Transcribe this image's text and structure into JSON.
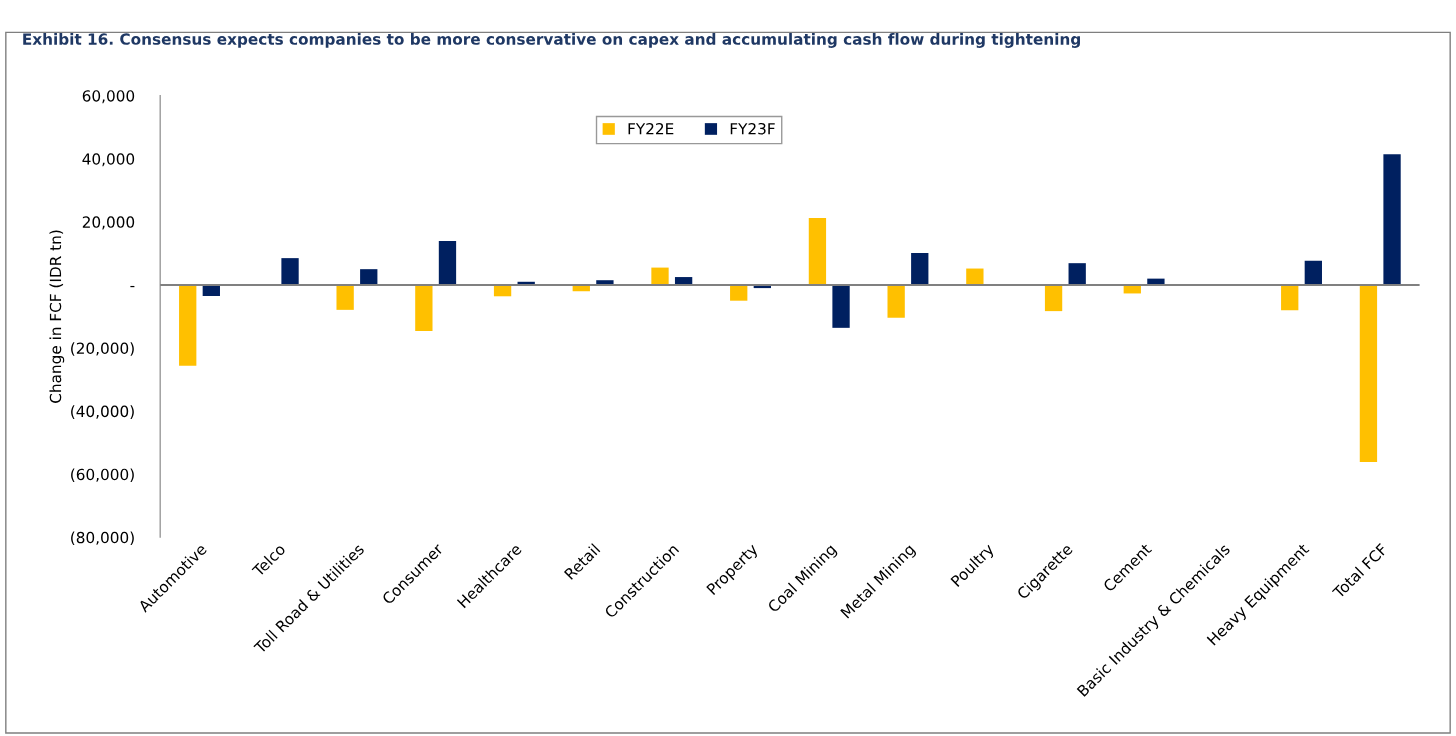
{
  "chart_data": {
    "type": "bar",
    "title": "Exhibit 16. Consensus expects companies to be more conservative on capex and accumulating cash flow during tightening",
    "ylabel": "Change in FCF (IDR tn)",
    "categories": [
      "Automotive",
      "Telco",
      "Toll Road & Utilities",
      "Consumer",
      "Healthcare",
      "Retail",
      "Construction",
      "Property",
      "Coal Mining",
      "Metal Mining",
      "Poultry",
      "Cigarette",
      "Cement",
      "Basic Industry & Chemicals",
      "Heavy Equipment",
      "Total FCF"
    ],
    "series": [
      {
        "name": "FY22E",
        "color": "#ffc000",
        "values": [
          -25600,
          null,
          -7900,
          -14600,
          -3600,
          -2000,
          5500,
          -5000,
          21200,
          -10400,
          5200,
          -8300,
          -2700,
          0,
          -8000,
          -56100
        ]
      },
      {
        "name": "FY23F",
        "color": "#002060",
        "values": [
          -3500,
          8500,
          5000,
          13900,
          1000,
          1500,
          2500,
          -1000,
          -13600,
          10100,
          0,
          6900,
          2000,
          0,
          7700,
          41400
        ]
      }
    ],
    "ylim": [
      -80000,
      60000
    ],
    "yticks": [
      {
        "value": -80000,
        "label": "(80,000)"
      },
      {
        "value": -60000,
        "label": "(60,000)"
      },
      {
        "value": -40000,
        "label": "(40,000)"
      },
      {
        "value": -20000,
        "label": "(20,000)"
      },
      {
        "value": 0,
        "label": "-"
      },
      {
        "value": 20000,
        "label": "20,000"
      },
      {
        "value": 40000,
        "label": "40,000"
      },
      {
        "value": 60000,
        "label": "60,000"
      }
    ],
    "grid": false,
    "ref_lines": [
      {
        "axis": "y",
        "value": 0,
        "color": "#808080"
      }
    ],
    "legend": "top"
  }
}
